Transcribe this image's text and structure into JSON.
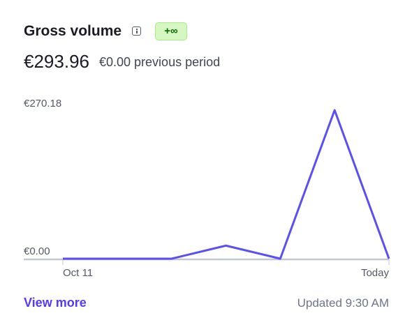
{
  "header": {
    "title": "Gross volume",
    "info_icon": "info-icon",
    "badge": "+∞",
    "badge_colors": {
      "bg": "#d7f7c2",
      "text": "#006908"
    }
  },
  "summary": {
    "amount": "€293.96",
    "previous": "€0.00 previous period"
  },
  "chart_data": {
    "type": "line",
    "x_tick_labels": [
      "Oct 11",
      "Today"
    ],
    "y_tick_labels": [
      "€270.18",
      "€0.00"
    ],
    "values": [
      0,
      0,
      0,
      23.78,
      0,
      270.18,
      0
    ],
    "ylim": [
      0,
      270.18
    ],
    "grid": false,
    "line_color": "#5b4ef6"
  },
  "footer": {
    "view_more": "View more",
    "updated": "Updated 9:30 AM"
  }
}
